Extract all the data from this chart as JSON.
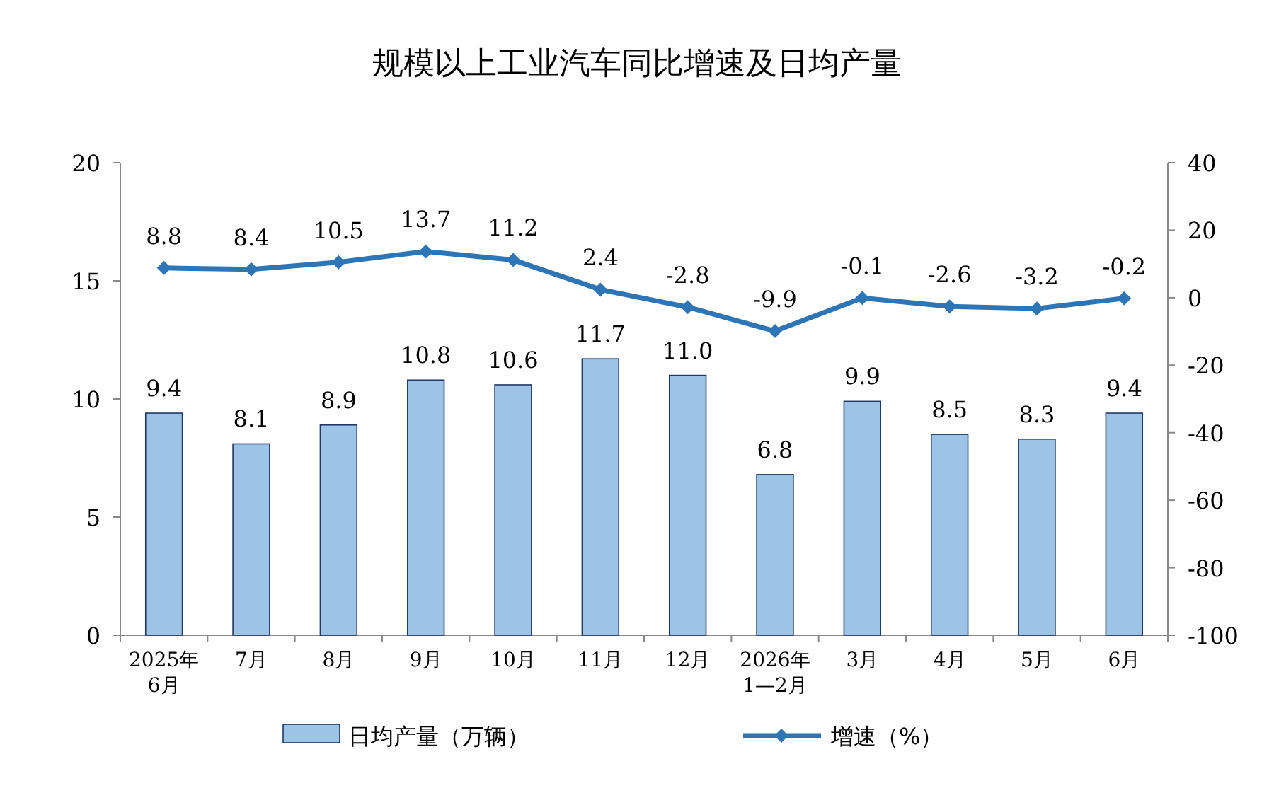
{
  "chart_data": {
    "type": "bar",
    "title": "规模以上工业汽车同比增速及日均产量",
    "categories": [
      "2025年\n6月",
      "7月",
      "8月",
      "9月",
      "10月",
      "11月",
      "12月",
      "2026年\n1—2月",
      "3月",
      "4月",
      "5月",
      "6月"
    ],
    "series": [
      {
        "name": "日均产量（万辆）",
        "color": "#9dc3e6",
        "values": [
          9.4,
          8.1,
          8.9,
          10.8,
          10.6,
          11.7,
          11.0,
          6.8,
          9.9,
          8.5,
          8.3,
          9.4
        ],
        "value_labels": [
          "9.4",
          "8.1",
          "8.9",
          "10.8",
          "10.6",
          "11.7",
          "11.0",
          "6.8",
          "9.9",
          "8.5",
          "8.3",
          "9.4"
        ]
      },
      {
        "name": "增速（%）",
        "type": "line",
        "axis": "y2",
        "color": "#2e75b6",
        "values": [
          8.8,
          8.4,
          10.5,
          13.7,
          11.2,
          2.4,
          -2.8,
          -9.9,
          -0.1,
          -2.6,
          -3.2,
          -0.2
        ],
        "value_labels": [
          "8.8",
          "8.4",
          "10.5",
          "13.7",
          "11.2",
          "2.4",
          "-2.8",
          "-9.9",
          "-0.1",
          "-2.6",
          "-3.2",
          "-0.2"
        ]
      }
    ],
    "ylim": [
      0,
      20
    ],
    "yticks": [
      0,
      5,
      10,
      15,
      20
    ],
    "y2lim": [
      -100,
      40
    ],
    "y2ticks": [
      -100,
      -80,
      -60,
      -40,
      -20,
      0,
      20,
      40
    ],
    "marker": "diamond",
    "legend": "bottom",
    "grid": false
  }
}
